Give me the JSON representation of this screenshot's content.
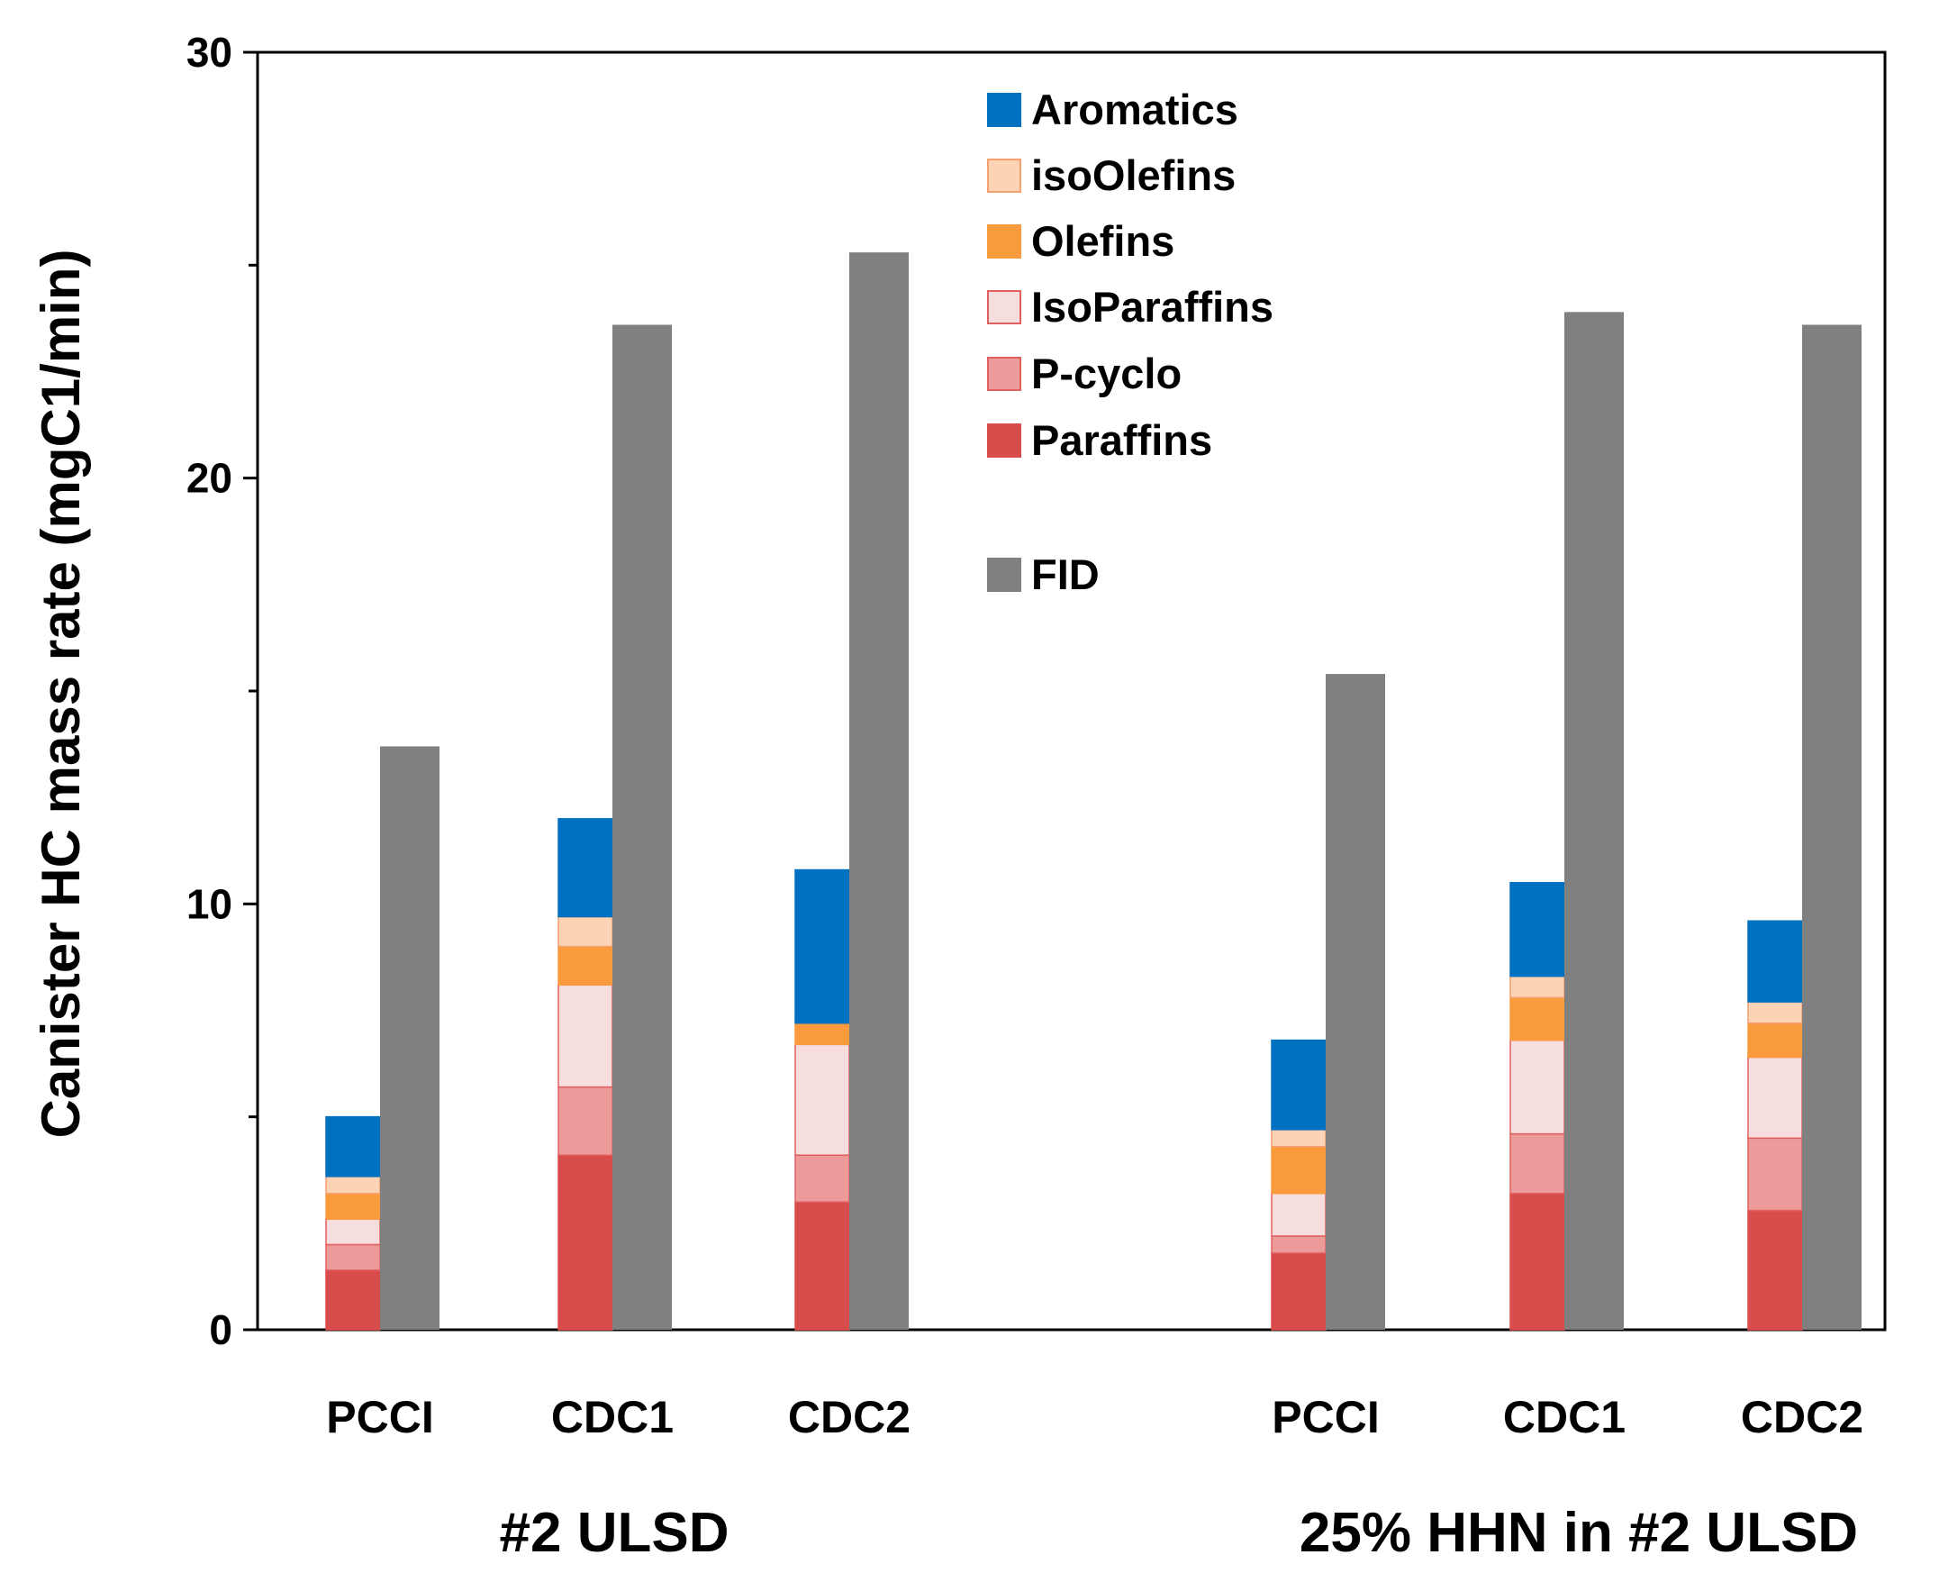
{
  "chart_data": {
    "type": "bar",
    "ylabel": "Canister HC mass rate (mgC1/min)",
    "ylim": [
      0,
      30
    ],
    "yticks": [
      "0",
      "10",
      "20",
      "30"
    ],
    "grid": false,
    "legend_position": "top-center",
    "groups": [
      {
        "label": "#2 ULSD",
        "categories": [
          "PCCI",
          "CDC1",
          "CDC2"
        ]
      },
      {
        "label": "25% HHN in #2 ULSD",
        "categories": [
          "PCCI",
          "CDC1",
          "CDC2"
        ]
      }
    ],
    "categories": [
      "PCCI",
      "CDC1",
      "CDC2",
      "PCCI",
      "CDC1",
      "CDC2"
    ],
    "stacked_series": [
      {
        "name": "Paraffins",
        "color": "#d94c4c",
        "border": "#d94c4c",
        "values": [
          1.4,
          4.1,
          3.0,
          1.8,
          3.2,
          2.8
        ]
      },
      {
        "name": "P-cyclo",
        "color": "#ec9a9a",
        "border": "#e06060",
        "values": [
          0.6,
          1.6,
          1.1,
          0.4,
          1.4,
          1.7
        ]
      },
      {
        "name": "IsoParaffins",
        "color": "#f7dede",
        "border": "#e06060",
        "values": [
          0.6,
          2.4,
          2.6,
          1.0,
          2.2,
          1.9
        ]
      },
      {
        "name": "Olefins",
        "color": "#f99b3d",
        "border": "#f99b3d",
        "values": [
          0.6,
          0.9,
          0.5,
          1.1,
          1.0,
          0.8
        ]
      },
      {
        "name": "isoOlefins",
        "color": "#fcd3b4",
        "border": "#f4a070",
        "values": [
          0.4,
          0.7,
          0.0,
          0.4,
          0.5,
          0.5
        ]
      },
      {
        "name": "Aromatics",
        "color": "#0070c0",
        "border": "#0070c0",
        "values": [
          1.4,
          2.3,
          3.6,
          2.1,
          2.2,
          1.9
        ]
      }
    ],
    "fid_series": {
      "name": "FID",
      "color": "#808080",
      "values": [
        13.7,
        23.6,
        25.3,
        15.4,
        23.9,
        23.6
      ]
    },
    "legend": [
      {
        "label": "Aromatics",
        "color": "#0070c0",
        "border": "#0070c0"
      },
      {
        "label": "isoOlefins",
        "color": "#fcd3b4",
        "border": "#f4a070"
      },
      {
        "label": "Olefins",
        "color": "#f99b3d",
        "border": "#f99b3d"
      },
      {
        "label": "IsoParaffins",
        "color": "#f7dede",
        "border": "#e06060"
      },
      {
        "label": "P-cyclo",
        "color": "#ec9a9a",
        "border": "#e06060"
      },
      {
        "label": "Paraffins",
        "color": "#d94c4c",
        "border": "#d94c4c"
      },
      {
        "label": "FID",
        "color": "#808080",
        "border": "#808080"
      }
    ]
  }
}
